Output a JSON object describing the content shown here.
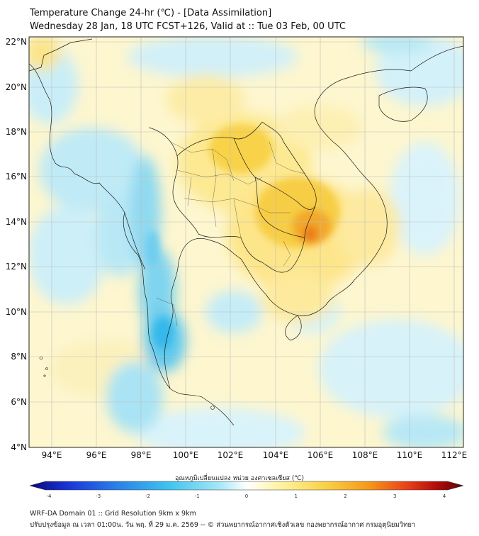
{
  "header": {
    "title": "Temperature Change 24-hr (℃) - [Data Assimilation]",
    "subtitle": "Wednesday 28 Jan, 18 UTC FCST+126, Valid at :: Tue 03 Feb, 00 UTC"
  },
  "axes": {
    "lat_labels": [
      "22°N",
      "20°N",
      "18°N",
      "16°N",
      "14°N",
      "12°N",
      "10°N",
      "8°N",
      "6°N",
      "4°N"
    ],
    "lon_labels": [
      "94°E",
      "96°E",
      "98°E",
      "100°E",
      "102°E",
      "104°E",
      "106°E",
      "108°E",
      "110°E",
      "112°E"
    ]
  },
  "colorbar": {
    "title": "อุณหภูมิเปลี่ยนแปลง หน่วย องศาเซลเซียส (℃)",
    "ticks": [
      "-4",
      "-3",
      "-2",
      "-1",
      "0",
      "1",
      "2",
      "3",
      "4"
    ],
    "colors": [
      "#08087a",
      "#1a35d8",
      "#2a7fe8",
      "#3fc3ee",
      "#a8e8f6",
      "#ffffff",
      "#fff2a0",
      "#fad24a",
      "#f59a1a",
      "#e8411a",
      "#b00a0a",
      "#5a0505"
    ]
  },
  "footer": {
    "line1": "WRF-DA Domain 01 :: Grid Resolution 9km x 9km",
    "line2": "ปรับปรุงข้อมูล ณ เวลา 01:00น. วัน พฤ. ที่ 29 ม.ค. 2569 -- © ส่วนพยากรณ์อากาศเชิงตัวเลข กองพยากรณ์อากาศ กรมอุตุนิยมวิทยา"
  }
}
